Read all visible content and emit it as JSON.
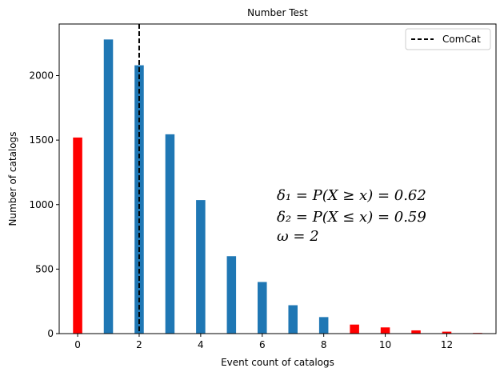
{
  "chart_data": {
    "type": "bar",
    "title": "Number Test",
    "xlabel": "Event count of catalogs",
    "ylabel": "Number of catalogs",
    "xlim": [
      -0.6,
      13.6
    ],
    "ylim": [
      0,
      2400
    ],
    "xticks": [
      0,
      2,
      4,
      6,
      8,
      10,
      12
    ],
    "yticks": [
      0,
      500,
      1000,
      1500,
      2000
    ],
    "colors": {
      "in_range": "#1f77b4",
      "out_of_range": "#ff0000",
      "observed": "#000000"
    },
    "bars": [
      {
        "x": 0,
        "value": 1520,
        "color": "#ff0000"
      },
      {
        "x": 1,
        "value": 2280,
        "color": "#1f77b4"
      },
      {
        "x": 2,
        "value": 2080,
        "color": "#1f77b4"
      },
      {
        "x": 3,
        "value": 1545,
        "color": "#1f77b4"
      },
      {
        "x": 4,
        "value": 1035,
        "color": "#1f77b4"
      },
      {
        "x": 5,
        "value": 600,
        "color": "#1f77b4"
      },
      {
        "x": 6,
        "value": 400,
        "color": "#1f77b4"
      },
      {
        "x": 7,
        "value": 220,
        "color": "#1f77b4"
      },
      {
        "x": 8,
        "value": 128,
        "color": "#1f77b4"
      },
      {
        "x": 9,
        "value": 70,
        "color": "#ff0000"
      },
      {
        "x": 10,
        "value": 48,
        "color": "#ff0000"
      },
      {
        "x": 11,
        "value": 25,
        "color": "#ff0000"
      },
      {
        "x": 12,
        "value": 15,
        "color": "#ff0000"
      },
      {
        "x": 13,
        "value": 5,
        "color": "#ff0000"
      }
    ],
    "observed_line": {
      "x": 2,
      "label": "ComCat",
      "style": "dashed"
    },
    "legend": {
      "position": "top-right",
      "entries": [
        "ComCat"
      ]
    },
    "annotations": [
      "δ₁ = P(X ≥ x) = 0.62",
      "δ₂ = P(X ≤ x) = 0.59",
      "ω = 2"
    ],
    "grid": false
  }
}
